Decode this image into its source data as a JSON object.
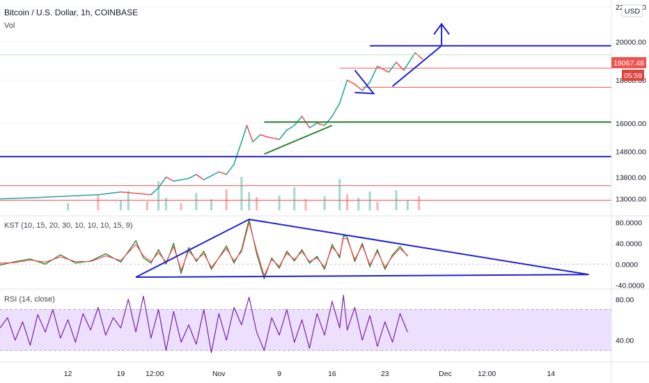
{
  "header": {
    "title": "Bitcoin / U.S. Dollar, 1h, COINBASE",
    "volume_label": "Vol",
    "currency_button": "USD"
  },
  "chart_data": [
    {
      "type": "line",
      "pane": "price",
      "y_scale": "log",
      "ylim": [
        12600,
        22000
      ],
      "y_ticks": [
        "22000.00",
        "20000.00",
        "18000.00",
        "16000.00",
        "14800.00",
        "13800.00",
        "13000.00"
      ],
      "y_tick_values": [
        22000,
        20000,
        18000,
        16000,
        14800,
        13800,
        13000
      ],
      "x_ticks": [
        "12",
        "19",
        "12:00",
        "Nov",
        "9",
        "16",
        "23",
        "Dec",
        "12:00",
        "14"
      ],
      "x_tick_days": [
        12,
        19,
        23.5,
        32,
        40,
        47,
        54,
        62,
        67.5,
        76
      ],
      "xlim_days": [
        3,
        84
      ],
      "last_price": "19067.48",
      "countdown": "05:59",
      "price_path": [
        [
          3,
          13000
        ],
        [
          8,
          13050
        ],
        [
          12,
          13100
        ],
        [
          16,
          13150
        ],
        [
          19,
          13250
        ],
        [
          21,
          13200
        ],
        [
          23,
          13150
        ],
        [
          24,
          13400
        ],
        [
          25,
          13800
        ],
        [
          26,
          13650
        ],
        [
          28,
          13750
        ],
        [
          29,
          13900
        ],
        [
          30,
          13700
        ],
        [
          31,
          13850
        ],
        [
          32,
          14000
        ],
        [
          33,
          13900
        ],
        [
          34,
          14300
        ],
        [
          35,
          15200
        ],
        [
          35.7,
          15900
        ],
        [
          36.5,
          15200
        ],
        [
          37.5,
          15500
        ],
        [
          38.5,
          15400
        ],
        [
          40,
          15300
        ],
        [
          41,
          15700
        ],
        [
          42,
          15900
        ],
        [
          43,
          16300
        ],
        [
          44,
          15800
        ],
        [
          45,
          16000
        ],
        [
          46,
          15900
        ],
        [
          47,
          16300
        ],
        [
          48,
          16900
        ],
        [
          49,
          18000
        ],
        [
          50,
          17800
        ],
        [
          51,
          17500
        ],
        [
          52,
          17900
        ],
        [
          53,
          18700
        ],
        [
          54.5,
          18400
        ],
        [
          55.5,
          18900
        ],
        [
          56.5,
          18500
        ],
        [
          57.5,
          19100
        ],
        [
          58,
          19400
        ],
        [
          59,
          19067
        ]
      ],
      "volume_bars": [
        [
          12,
          1.0
        ],
        [
          16,
          2.2
        ],
        [
          19,
          1.4
        ],
        [
          20,
          2.8
        ],
        [
          22.5,
          1.3
        ],
        [
          24,
          4.2
        ],
        [
          25,
          1.8
        ],
        [
          27,
          1.0
        ],
        [
          29,
          2.5
        ],
        [
          31,
          1.6
        ],
        [
          33,
          3.0
        ],
        [
          35,
          4.8
        ],
        [
          36,
          2.6
        ],
        [
          37,
          1.9
        ],
        [
          40,
          2.1
        ],
        [
          42,
          3.3
        ],
        [
          43.5,
          1.6
        ],
        [
          46,
          2.0
        ],
        [
          48,
          4.5
        ],
        [
          49,
          2.3
        ],
        [
          50.5,
          1.8
        ],
        [
          52,
          2.7
        ],
        [
          53,
          1.2
        ],
        [
          55.5,
          2.9
        ],
        [
          57,
          1.4
        ],
        [
          58.5,
          2.0
        ]
      ],
      "drawings": [
        {
          "kind": "horizontal",
          "color": "#1f1fd6",
          "y": 14600,
          "x1": 3,
          "x2": 84
        },
        {
          "kind": "horizontal",
          "color": "#1f1fd6",
          "y": 19780,
          "x1": 52,
          "x2": 84
        },
        {
          "kind": "horizontal",
          "color": "#2e7d32",
          "y": 16050,
          "x1": 38,
          "x2": 84
        },
        {
          "kind": "horizontal",
          "color": "#b3f0b3",
          "y": 19300,
          "x1": 3,
          "x2": 84
        },
        {
          "kind": "horizontal",
          "color": "#ef5350",
          "y": 18600,
          "x1": 48,
          "x2": 84
        },
        {
          "kind": "horizontal",
          "color": "#ef5350",
          "y": 17650,
          "x1": 51,
          "x2": 84
        },
        {
          "kind": "horizontal",
          "color": "#ef5350",
          "y": 13480,
          "x1": 3,
          "x2": 84
        },
        {
          "kind": "horizontal",
          "color": "#ef5350",
          "y": 12950,
          "x1": 3,
          "x2": 84
        },
        {
          "kind": "segment",
          "color": "#2e7d32",
          "points": [
            [
              38,
              14700
            ],
            [
              47,
              15900
            ]
          ]
        },
        {
          "kind": "segment",
          "color": "#1f1fd6",
          "points": [
            [
              55,
              17700
            ],
            [
              61.5,
              19780
            ]
          ]
        },
        {
          "kind": "polyline",
          "color": "#1f1fd6",
          "points": [
            [
              50,
              18500
            ],
            [
              52.5,
              17350
            ],
            [
              50,
              17400
            ]
          ]
        },
        {
          "kind": "arrow",
          "color": "#1f1fd6",
          "points": [
            [
              61.5,
              19780
            ],
            [
              61.5,
              21000
            ]
          ]
        }
      ]
    },
    {
      "type": "line",
      "pane": "kst",
      "label": "KST (10, 15, 20, 30, 10, 10, 10, 15, 9)",
      "ylim": [
        -45,
        90
      ],
      "y_ticks": [
        "80.0000",
        "40.0000",
        "0.0000",
        "-40.0000"
      ],
      "y_tick_values": [
        80,
        40,
        0,
        -40
      ],
      "series": [
        {
          "color": "#2e7d32",
          "values": [
            [
              3,
              -2
            ],
            [
              5,
              5
            ],
            [
              7,
              10
            ],
            [
              9,
              0
            ],
            [
              11,
              18
            ],
            [
              13,
              2
            ],
            [
              15,
              6
            ],
            [
              17,
              20
            ],
            [
              19,
              4
            ],
            [
              21,
              45
            ],
            [
              22,
              12
            ],
            [
              23,
              2
            ],
            [
              24,
              28
            ],
            [
              25,
              0
            ],
            [
              26,
              40
            ],
            [
              27,
              -18
            ],
            [
              28,
              32
            ],
            [
              29,
              5
            ],
            [
              30,
              25
            ],
            [
              31,
              -10
            ],
            [
              33,
              35
            ],
            [
              34,
              2
            ],
            [
              35,
              28
            ],
            [
              36,
              86
            ],
            [
              37,
              20
            ],
            [
              38,
              -28
            ],
            [
              39,
              12
            ],
            [
              40,
              -8
            ],
            [
              41,
              25
            ],
            [
              42,
              6
            ],
            [
              43,
              28
            ],
            [
              44,
              2
            ],
            [
              45,
              15
            ],
            [
              46,
              -10
            ],
            [
              47,
              38
            ],
            [
              48,
              12
            ],
            [
              48.5,
              55
            ],
            [
              49,
              52
            ],
            [
              50,
              5
            ],
            [
              51,
              40
            ],
            [
              52,
              -5
            ],
            [
              53,
              28
            ],
            [
              54,
              -10
            ],
            [
              55,
              18
            ],
            [
              56,
              34
            ],
            [
              57,
              15
            ]
          ]
        },
        {
          "color": "#ef5350",
          "values": [
            [
              3,
              2
            ],
            [
              5,
              3
            ],
            [
              7,
              8
            ],
            [
              9,
              4
            ],
            [
              11,
              14
            ],
            [
              13,
              5
            ],
            [
              15,
              5
            ],
            [
              17,
              16
            ],
            [
              19,
              7
            ],
            [
              21,
              38
            ],
            [
              22,
              16
            ],
            [
              23,
              5
            ],
            [
              24,
              22
            ],
            [
              25,
              4
            ],
            [
              26,
              34
            ],
            [
              27,
              -12
            ],
            [
              28,
              26
            ],
            [
              29,
              8
            ],
            [
              30,
              20
            ],
            [
              31,
              -6
            ],
            [
              33,
              30
            ],
            [
              34,
              6
            ],
            [
              35,
              24
            ],
            [
              36,
              80
            ],
            [
              37,
              26
            ],
            [
              38,
              -22
            ],
            [
              39,
              9
            ],
            [
              40,
              -4
            ],
            [
              41,
              21
            ],
            [
              42,
              9
            ],
            [
              43,
              24
            ],
            [
              44,
              5
            ],
            [
              45,
              12
            ],
            [
              46,
              -6
            ],
            [
              47,
              33
            ],
            [
              48,
              16
            ],
            [
              48.5,
              50
            ],
            [
              49,
              48
            ],
            [
              50,
              9
            ],
            [
              51,
              36
            ],
            [
              52,
              -1
            ],
            [
              53,
              24
            ],
            [
              54,
              -6
            ],
            [
              55,
              15
            ],
            [
              56,
              30
            ],
            [
              57,
              17
            ]
          ]
        }
      ],
      "drawings": [
        {
          "kind": "polygon",
          "color": "#1f1fd6",
          "points": [
            [
              36,
              86
            ],
            [
              81,
              -20
            ],
            [
              21,
              -25
            ]
          ]
        }
      ]
    },
    {
      "type": "line",
      "pane": "rsi",
      "label": "RSI (14, close)",
      "ylim": [
        20,
        88
      ],
      "y_ticks": [
        "80.00",
        "40.00"
      ],
      "y_tick_values": [
        80,
        40
      ],
      "band": [
        30,
        70
      ],
      "series": [
        {
          "color": "#7b1fa2",
          "values": [
            [
              3,
              52
            ],
            [
              4,
              62
            ],
            [
              5,
              40
            ],
            [
              6,
              58
            ],
            [
              7,
              35
            ],
            [
              8,
              65
            ],
            [
              9,
              48
            ],
            [
              10,
              70
            ],
            [
              11,
              42
            ],
            [
              12,
              60
            ],
            [
              13,
              38
            ],
            [
              14,
              66
            ],
            [
              15,
              50
            ],
            [
              16,
              72
            ],
            [
              17,
              45
            ],
            [
              18,
              62
            ],
            [
              19,
              52
            ],
            [
              20,
              80
            ],
            [
              21,
              48
            ],
            [
              22,
              83
            ],
            [
              23,
              42
            ],
            [
              24,
              70
            ],
            [
              25,
              30
            ],
            [
              26,
              68
            ],
            [
              27,
              38
            ],
            [
              28,
              55
            ],
            [
              29,
              36
            ],
            [
              30,
              70
            ],
            [
              31,
              28
            ],
            [
              32,
              66
            ],
            [
              33,
              40
            ],
            [
              34,
              72
            ],
            [
              35,
              55
            ],
            [
              36,
              82
            ],
            [
              37,
              48
            ],
            [
              38,
              30
            ],
            [
              39,
              62
            ],
            [
              40,
              45
            ],
            [
              41,
              70
            ],
            [
              42,
              38
            ],
            [
              43,
              60
            ],
            [
              44,
              32
            ],
            [
              45,
              66
            ],
            [
              46,
              45
            ],
            [
              47,
              78
            ],
            [
              48,
              52
            ],
            [
              48.5,
              84
            ],
            [
              49,
              50
            ],
            [
              50,
              72
            ],
            [
              51,
              40
            ],
            [
              52,
              64
            ],
            [
              53,
              34
            ],
            [
              54,
              58
            ],
            [
              55,
              38
            ],
            [
              56,
              66
            ],
            [
              57,
              48
            ]
          ]
        }
      ]
    }
  ],
  "colors": {
    "accent_blue": "#1f1fd6",
    "price_tag": "#ef5350",
    "countdown_tag": "#e0433f",
    "candle_up": "#26a69a",
    "candle_down": "#ef5350",
    "rsi_band": "#ede0ff"
  }
}
